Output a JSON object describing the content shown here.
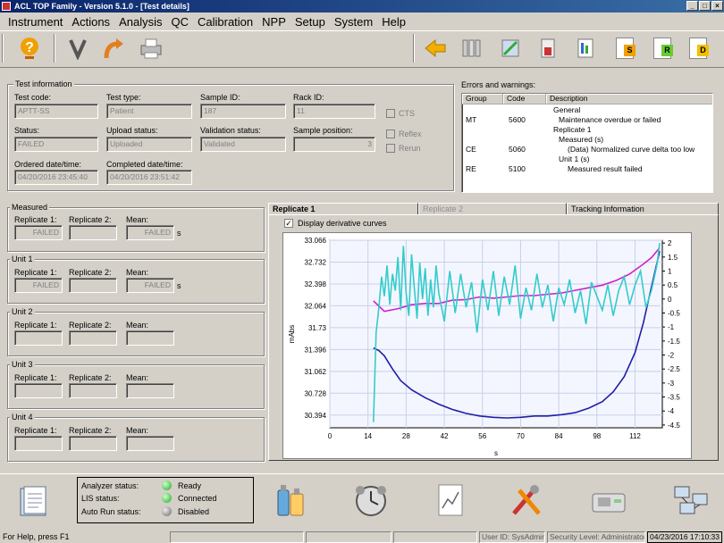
{
  "window": {
    "title": "ACL TOP Family - Version 5.1.0 - [Test details]"
  },
  "menu": [
    "Instrument",
    "Actions",
    "Analysis",
    "QC",
    "Calibration",
    "NPP",
    "Setup",
    "System",
    "Help"
  ],
  "toolbar": {
    "right_doc_letters": [
      "S",
      "R",
      "D"
    ]
  },
  "test_info": {
    "title": "Test information",
    "test_code_label": "Test code:",
    "test_code": "APTT-SS",
    "test_type_label": "Test type:",
    "test_type": "Patient",
    "sample_id_label": "Sample ID:",
    "sample_id": "187",
    "rack_id_label": "Rack ID:",
    "rack_id": "11",
    "status_label": "Status:",
    "status": "FAILED",
    "upload_label": "Upload status:",
    "upload": "Uploaded",
    "validation_label": "Validation status:",
    "validation": "Validated",
    "sample_pos_label": "Sample position:",
    "sample_pos": "3",
    "ordered_label": "Ordered date/time:",
    "ordered": "04/20/2016 23:45:40",
    "completed_label": "Completed date/time:",
    "completed": "04/20/2016 23:51:42",
    "cts_label": "CTS",
    "reflex_label": "Reflex",
    "rerun_label": "Rerun"
  },
  "errors": {
    "title": "Errors and warnings:",
    "columns": [
      "Group",
      "Code",
      "Description"
    ],
    "rows": [
      {
        "group": "",
        "code": "",
        "desc": "General"
      },
      {
        "group": "MT",
        "code": "5600",
        "desc": "Maintenance overdue or failed"
      },
      {
        "group": "",
        "code": "",
        "desc": "Replicate 1"
      },
      {
        "group": "",
        "code": "",
        "desc": "Measured (s)"
      },
      {
        "group": "CE",
        "code": "5060",
        "desc": "(Data) Normalized curve delta too low"
      },
      {
        "group": "",
        "code": "",
        "desc": "Unit 1 (s)"
      },
      {
        "group": "RE",
        "code": "5100",
        "desc": "Measured result failed"
      }
    ]
  },
  "results": {
    "rep1_label": "Replicate 1:",
    "rep2_label": "Replicate 2:",
    "mean_label": "Mean:",
    "unit_s": "s",
    "groups": [
      {
        "title": "Measured",
        "rep1": "FAILED",
        "rep2": "",
        "mean": "FAILED",
        "unit": "s"
      },
      {
        "title": "Unit 1",
        "rep1": "FAILED",
        "rep2": "",
        "mean": "FAILED",
        "unit": "s"
      },
      {
        "title": "Unit 2",
        "rep1": "",
        "rep2": "",
        "mean": "",
        "unit": ""
      },
      {
        "title": "Unit 3",
        "rep1": "",
        "rep2": "",
        "mean": "",
        "unit": ""
      },
      {
        "title": "Unit 4",
        "rep1": "",
        "rep2": "",
        "mean": "",
        "unit": ""
      }
    ]
  },
  "tabs": [
    "Replicate 1",
    "Replicate 2",
    "Tracking Information"
  ],
  "display_derivative_label": "Display derivative curves",
  "chart_data": {
    "type": "line",
    "xlabel": "s",
    "ylabel": "mAbs",
    "xlim": [
      0,
      122
    ],
    "ylim": [
      30.2,
      33.066
    ],
    "y2lim": [
      -4.6,
      2.1
    ],
    "x_ticks": [
      0,
      14,
      28,
      42,
      56,
      70,
      84,
      98,
      112
    ],
    "y_ticks": [
      "33.066",
      "32.732",
      "32.398",
      "32.064",
      "31.73",
      "31.396",
      "31.062",
      "30.728",
      "30.394"
    ],
    "y2_ticks": [
      "2",
      "1.5",
      "1",
      "0.5",
      "0",
      "-0.5",
      "-1",
      "-1.5",
      "-2",
      "-2.5",
      "-3",
      "-3.5",
      "-4",
      "-4.5"
    ],
    "series": [
      {
        "color": "#1f1fa8",
        "axis": "left",
        "x": [
          16,
          18,
          20,
          23,
          26,
          30,
          35,
          40,
          45,
          50,
          55,
          60,
          65,
          70,
          75,
          80,
          85,
          90,
          95,
          100,
          104,
          108,
          112,
          115,
          118,
          121
        ],
        "y": [
          31.42,
          31.38,
          31.3,
          31.1,
          30.92,
          30.78,
          30.66,
          30.56,
          30.48,
          30.42,
          30.38,
          30.36,
          30.35,
          30.36,
          30.38,
          30.38,
          30.4,
          30.43,
          30.5,
          30.6,
          30.75,
          30.98,
          31.35,
          31.8,
          32.35,
          32.9
        ]
      },
      {
        "color": "#cc22cc",
        "axis": "left",
        "x": [
          16,
          20,
          25,
          30,
          35,
          40,
          45,
          50,
          55,
          60,
          65,
          70,
          75,
          80,
          85,
          90,
          95,
          100,
          105,
          110,
          115,
          118,
          121
        ],
        "y": [
          32.14,
          31.98,
          32.02,
          32.08,
          32.1,
          32.1,
          32.15,
          32.16,
          32.2,
          32.18,
          32.2,
          32.22,
          32.22,
          32.24,
          32.26,
          32.3,
          32.34,
          32.38,
          32.45,
          32.55,
          32.7,
          32.8,
          32.95
        ]
      },
      {
        "color": "#33cccc",
        "axis": "right",
        "x": [
          16,
          17,
          18,
          19,
          20,
          21,
          22,
          23,
          24,
          25,
          26,
          27,
          28,
          29,
          30,
          31,
          32,
          33,
          34,
          35,
          36,
          37,
          38,
          39,
          40,
          42,
          44,
          46,
          48,
          50,
          52,
          54,
          56,
          58,
          60,
          62,
          64,
          66,
          68,
          70,
          72,
          74,
          76,
          78,
          80,
          82,
          84,
          86,
          88,
          90,
          92,
          94,
          96,
          98,
          100,
          102,
          104,
          106,
          108,
          110,
          112,
          114,
          116,
          118,
          120,
          121
        ],
        "y": [
          -4.4,
          -1.2,
          -0.3,
          0.8,
          0.1,
          1.2,
          -0.2,
          0.9,
          0.3,
          1.5,
          -0.4,
          1.9,
          0.2,
          -0.6,
          1.6,
          0.4,
          -0.7,
          1.3,
          0.0,
          1.1,
          -0.6,
          0.7,
          -0.3,
          1.2,
          0.2,
          -0.8,
          1.0,
          -0.5,
          0.9,
          -0.3,
          0.6,
          -1.2,
          0.7,
          -0.4,
          1.0,
          -0.6,
          0.8,
          -0.2,
          1.2,
          -0.7,
          0.4,
          -0.4,
          0.9,
          -0.3,
          0.5,
          -0.8,
          0.4,
          -0.2,
          0.7,
          -0.5,
          0.3,
          -0.9,
          0.6,
          0.1,
          -0.4,
          0.5,
          -0.6,
          0.3,
          0.8,
          -0.2,
          0.5,
          1.0,
          -0.3,
          0.3,
          1.2,
          2.0
        ]
      }
    ]
  },
  "bottom": {
    "analyzer_label": "Analyzer status:",
    "analyzer_value": "Ready",
    "lis_label": "LIS status:",
    "lis_value": "Connected",
    "autorun_label": "Auto Run status:",
    "autorun_value": "Disabled"
  },
  "statusbar": {
    "help": "For Help, press F1",
    "user": "User ID: SysAdmin",
    "security": "Security Level: Administrator",
    "datetime": "04/23/2016 17:10:33"
  }
}
